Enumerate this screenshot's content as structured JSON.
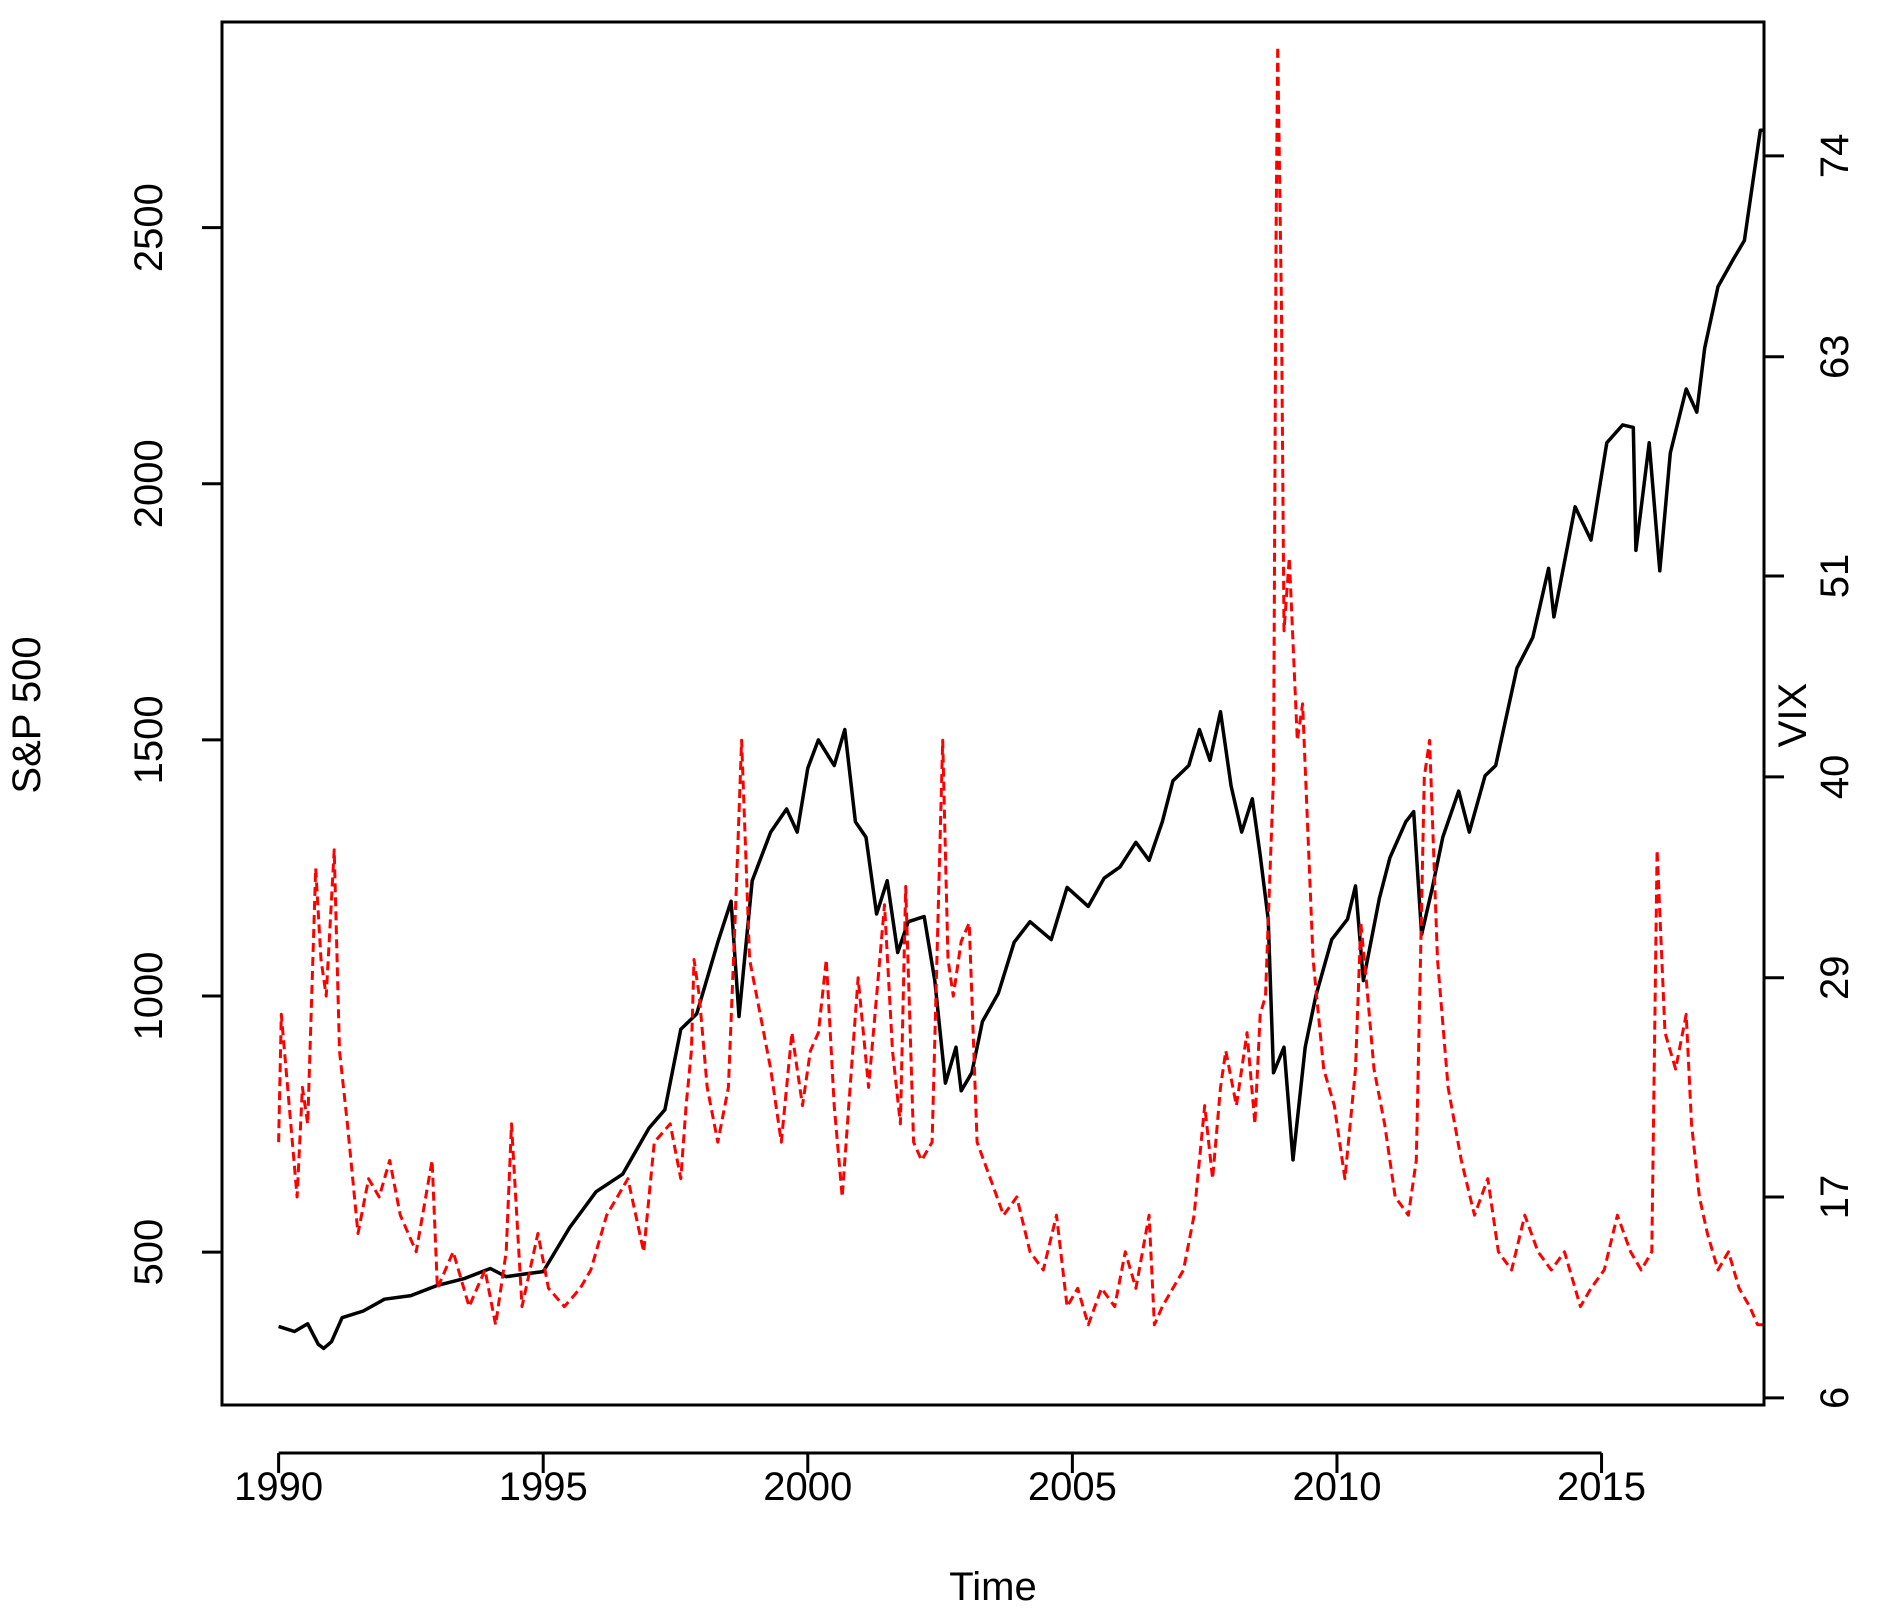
{
  "chart_data": {
    "type": "line",
    "xlabel": "Time",
    "ylabel_left": "S&P 500",
    "ylabel_right": "VIX",
    "xlim": [
      1988.93,
      2018.07
    ],
    "ylim_left": [
      201.5,
      2901.5
    ],
    "ylim_right": [
      5.61,
      81.33
    ],
    "x_ticks": [
      1990,
      1995,
      2000,
      2005,
      2010,
      2015
    ],
    "x_tick_labels": [
      "1990",
      "1995",
      "2000",
      "2005",
      "2010",
      "2015"
    ],
    "y_left_ticks": [
      500,
      1000,
      1500,
      2000,
      2500
    ],
    "y_left_tick_labels": [
      "500",
      "1000",
      "1500",
      "2000",
      "2500"
    ],
    "y_right_ticks": [
      6,
      17,
      29,
      40,
      51,
      63,
      74
    ],
    "y_right_tick_labels": [
      "6",
      "17",
      "29",
      "40",
      "51",
      "63",
      "74"
    ],
    "grid": false,
    "legend": "none",
    "series": [
      {
        "axis": "left",
        "color": "#000000",
        "style": "solid",
        "points": [
          [
            1990.0,
            355
          ],
          [
            1990.3,
            345
          ],
          [
            1990.55,
            360
          ],
          [
            1990.75,
            320
          ],
          [
            1990.85,
            312
          ],
          [
            1991.0,
            325
          ],
          [
            1991.2,
            372
          ],
          [
            1991.6,
            385
          ],
          [
            1992.0,
            408
          ],
          [
            1992.5,
            415
          ],
          [
            1993.0,
            435
          ],
          [
            1993.5,
            448
          ],
          [
            1994.0,
            468
          ],
          [
            1994.3,
            452
          ],
          [
            1994.7,
            458
          ],
          [
            1995.0,
            462
          ],
          [
            1995.5,
            548
          ],
          [
            1996.0,
            618
          ],
          [
            1996.5,
            652
          ],
          [
            1997.0,
            742
          ],
          [
            1997.3,
            778
          ],
          [
            1997.6,
            935
          ],
          [
            1997.9,
            965
          ],
          [
            1998.3,
            1105
          ],
          [
            1998.55,
            1185
          ],
          [
            1998.7,
            960
          ],
          [
            1998.95,
            1225
          ],
          [
            1999.3,
            1320
          ],
          [
            1999.6,
            1365
          ],
          [
            1999.8,
            1320
          ],
          [
            2000.0,
            1445
          ],
          [
            2000.2,
            1500
          ],
          [
            2000.5,
            1450
          ],
          [
            2000.7,
            1520
          ],
          [
            2000.9,
            1340
          ],
          [
            2001.1,
            1310
          ],
          [
            2001.3,
            1160
          ],
          [
            2001.5,
            1225
          ],
          [
            2001.7,
            1085
          ],
          [
            2001.9,
            1145
          ],
          [
            2002.2,
            1155
          ],
          [
            2002.4,
            1030
          ],
          [
            2002.6,
            830
          ],
          [
            2002.8,
            900
          ],
          [
            2002.9,
            815
          ],
          [
            2003.1,
            850
          ],
          [
            2003.3,
            950
          ],
          [
            2003.6,
            1005
          ],
          [
            2003.9,
            1105
          ],
          [
            2004.2,
            1145
          ],
          [
            2004.6,
            1110
          ],
          [
            2004.9,
            1212
          ],
          [
            2005.3,
            1175
          ],
          [
            2005.6,
            1230
          ],
          [
            2005.9,
            1252
          ],
          [
            2006.2,
            1300
          ],
          [
            2006.45,
            1265
          ],
          [
            2006.7,
            1340
          ],
          [
            2006.9,
            1420
          ],
          [
            2007.2,
            1450
          ],
          [
            2007.4,
            1520
          ],
          [
            2007.6,
            1460
          ],
          [
            2007.8,
            1555
          ],
          [
            2008.0,
            1410
          ],
          [
            2008.2,
            1320
          ],
          [
            2008.4,
            1385
          ],
          [
            2008.55,
            1275
          ],
          [
            2008.7,
            1150
          ],
          [
            2008.8,
            850
          ],
          [
            2009.0,
            900
          ],
          [
            2009.17,
            680
          ],
          [
            2009.4,
            900
          ],
          [
            2009.6,
            1000
          ],
          [
            2009.9,
            1110
          ],
          [
            2010.2,
            1150
          ],
          [
            2010.35,
            1215
          ],
          [
            2010.5,
            1030
          ],
          [
            2010.8,
            1190
          ],
          [
            2011.0,
            1270
          ],
          [
            2011.3,
            1340
          ],
          [
            2011.45,
            1360
          ],
          [
            2011.6,
            1120
          ],
          [
            2011.8,
            1210
          ],
          [
            2012.0,
            1310
          ],
          [
            2012.3,
            1400
          ],
          [
            2012.5,
            1320
          ],
          [
            2012.8,
            1430
          ],
          [
            2013.0,
            1450
          ],
          [
            2013.4,
            1640
          ],
          [
            2013.7,
            1700
          ],
          [
            2014.0,
            1835
          ],
          [
            2014.1,
            1740
          ],
          [
            2014.5,
            1955
          ],
          [
            2014.8,
            1890
          ],
          [
            2015.1,
            2080
          ],
          [
            2015.4,
            2115
          ],
          [
            2015.6,
            2110
          ],
          [
            2015.65,
            1870
          ],
          [
            2015.9,
            2080
          ],
          [
            2016.1,
            1830
          ],
          [
            2016.3,
            2060
          ],
          [
            2016.6,
            2185
          ],
          [
            2016.8,
            2140
          ],
          [
            2016.95,
            2265
          ],
          [
            2017.2,
            2385
          ],
          [
            2017.5,
            2440
          ],
          [
            2017.7,
            2475
          ],
          [
            2018.0,
            2690
          ],
          [
            2018.07,
            2690
          ]
        ]
      },
      {
        "axis": "right",
        "color": "#ff0000",
        "style": "dashed",
        "points": [
          [
            1990.0,
            20
          ],
          [
            1990.05,
            27
          ],
          [
            1990.2,
            22
          ],
          [
            1990.35,
            17
          ],
          [
            1990.45,
            23
          ],
          [
            1990.55,
            21
          ],
          [
            1990.7,
            35
          ],
          [
            1990.8,
            30
          ],
          [
            1990.9,
            28
          ],
          [
            1991.05,
            36
          ],
          [
            1991.15,
            25
          ],
          [
            1991.3,
            21
          ],
          [
            1991.5,
            15
          ],
          [
            1991.7,
            18
          ],
          [
            1991.9,
            17
          ],
          [
            1992.1,
            19
          ],
          [
            1992.3,
            16
          ],
          [
            1992.6,
            14
          ],
          [
            1992.9,
            19
          ],
          [
            1993.0,
            12
          ],
          [
            1993.3,
            14
          ],
          [
            1993.6,
            11
          ],
          [
            1993.9,
            13
          ],
          [
            1994.1,
            10
          ],
          [
            1994.3,
            14
          ],
          [
            1994.4,
            21
          ],
          [
            1994.6,
            11
          ],
          [
            1994.9,
            15
          ],
          [
            1995.1,
            12
          ],
          [
            1995.4,
            11
          ],
          [
            1995.7,
            12
          ],
          [
            1995.9,
            13
          ],
          [
            1996.2,
            16
          ],
          [
            1996.4,
            17
          ],
          [
            1996.6,
            18
          ],
          [
            1996.9,
            14
          ],
          [
            1997.1,
            20
          ],
          [
            1997.4,
            21
          ],
          [
            1997.6,
            18
          ],
          [
            1997.7,
            22
          ],
          [
            1997.8,
            25
          ],
          [
            1997.85,
            30
          ],
          [
            1997.95,
            28
          ],
          [
            1998.1,
            23
          ],
          [
            1998.3,
            20
          ],
          [
            1998.5,
            23
          ],
          [
            1998.65,
            34
          ],
          [
            1998.75,
            42
          ],
          [
            1998.9,
            30
          ],
          [
            1999.1,
            27
          ],
          [
            1999.3,
            24
          ],
          [
            1999.5,
            20
          ],
          [
            1999.7,
            26
          ],
          [
            1999.9,
            22
          ],
          [
            2000.05,
            25
          ],
          [
            2000.2,
            26
          ],
          [
            2000.35,
            30
          ],
          [
            2000.5,
            22
          ],
          [
            2000.65,
            17
          ],
          [
            2000.8,
            23
          ],
          [
            2000.95,
            29
          ],
          [
            2001.15,
            23
          ],
          [
            2001.3,
            28
          ],
          [
            2001.45,
            33
          ],
          [
            2001.6,
            25
          ],
          [
            2001.75,
            21
          ],
          [
            2001.85,
            34
          ],
          [
            2002.0,
            20
          ],
          [
            2002.15,
            19
          ],
          [
            2002.35,
            20
          ],
          [
            2002.55,
            42
          ],
          [
            2002.65,
            30
          ],
          [
            2002.75,
            28
          ],
          [
            2002.9,
            31
          ],
          [
            2003.05,
            32
          ],
          [
            2003.2,
            20
          ],
          [
            2003.45,
            18
          ],
          [
            2003.7,
            16
          ],
          [
            2003.95,
            17
          ],
          [
            2004.2,
            14
          ],
          [
            2004.45,
            13
          ],
          [
            2004.7,
            16
          ],
          [
            2004.9,
            11
          ],
          [
            2005.1,
            12
          ],
          [
            2005.3,
            10
          ],
          [
            2005.55,
            12
          ],
          [
            2005.8,
            11
          ],
          [
            2006.0,
            14
          ],
          [
            2006.2,
            12
          ],
          [
            2006.45,
            16
          ],
          [
            2006.55,
            10
          ],
          [
            2006.7,
            11
          ],
          [
            2006.9,
            12
          ],
          [
            2007.1,
            13
          ],
          [
            2007.3,
            16
          ],
          [
            2007.5,
            22
          ],
          [
            2007.65,
            18
          ],
          [
            2007.8,
            23
          ],
          [
            2007.9,
            25
          ],
          [
            2008.1,
            22
          ],
          [
            2008.3,
            26
          ],
          [
            2008.45,
            21
          ],
          [
            2008.55,
            27
          ],
          [
            2008.65,
            28
          ],
          [
            2008.8,
            40
          ],
          [
            2008.85,
            70
          ],
          [
            2008.88,
            80
          ],
          [
            2008.95,
            66
          ],
          [
            2009.0,
            48
          ],
          [
            2009.1,
            52
          ],
          [
            2009.25,
            42
          ],
          [
            2009.35,
            44
          ],
          [
            2009.55,
            30
          ],
          [
            2009.75,
            24
          ],
          [
            2009.95,
            22
          ],
          [
            2010.15,
            18
          ],
          [
            2010.35,
            24
          ],
          [
            2010.45,
            32
          ],
          [
            2010.55,
            29
          ],
          [
            2010.7,
            24
          ],
          [
            2010.9,
            21
          ],
          [
            2011.1,
            17
          ],
          [
            2011.35,
            16
          ],
          [
            2011.5,
            19
          ],
          [
            2011.65,
            40
          ],
          [
            2011.75,
            42
          ],
          [
            2011.9,
            30
          ],
          [
            2012.1,
            23
          ],
          [
            2012.35,
            19
          ],
          [
            2012.6,
            16
          ],
          [
            2012.85,
            18
          ],
          [
            2013.05,
            14
          ],
          [
            2013.3,
            13
          ],
          [
            2013.55,
            16
          ],
          [
            2013.8,
            14
          ],
          [
            2014.05,
            13
          ],
          [
            2014.3,
            14
          ],
          [
            2014.6,
            11
          ],
          [
            2014.8,
            12
          ],
          [
            2015.05,
            13
          ],
          [
            2015.3,
            16
          ],
          [
            2015.55,
            14
          ],
          [
            2015.75,
            13
          ],
          [
            2015.95,
            14
          ],
          [
            2016.05,
            36
          ],
          [
            2016.2,
            26
          ],
          [
            2016.4,
            24
          ],
          [
            2016.6,
            27
          ],
          [
            2016.7,
            21
          ],
          [
            2016.85,
            17
          ],
          [
            2017.0,
            15
          ],
          [
            2017.2,
            13
          ],
          [
            2017.4,
            14
          ],
          [
            2017.6,
            12
          ],
          [
            2017.8,
            11
          ],
          [
            2017.95,
            10
          ],
          [
            2018.07,
            10
          ]
        ]
      }
    ]
  }
}
